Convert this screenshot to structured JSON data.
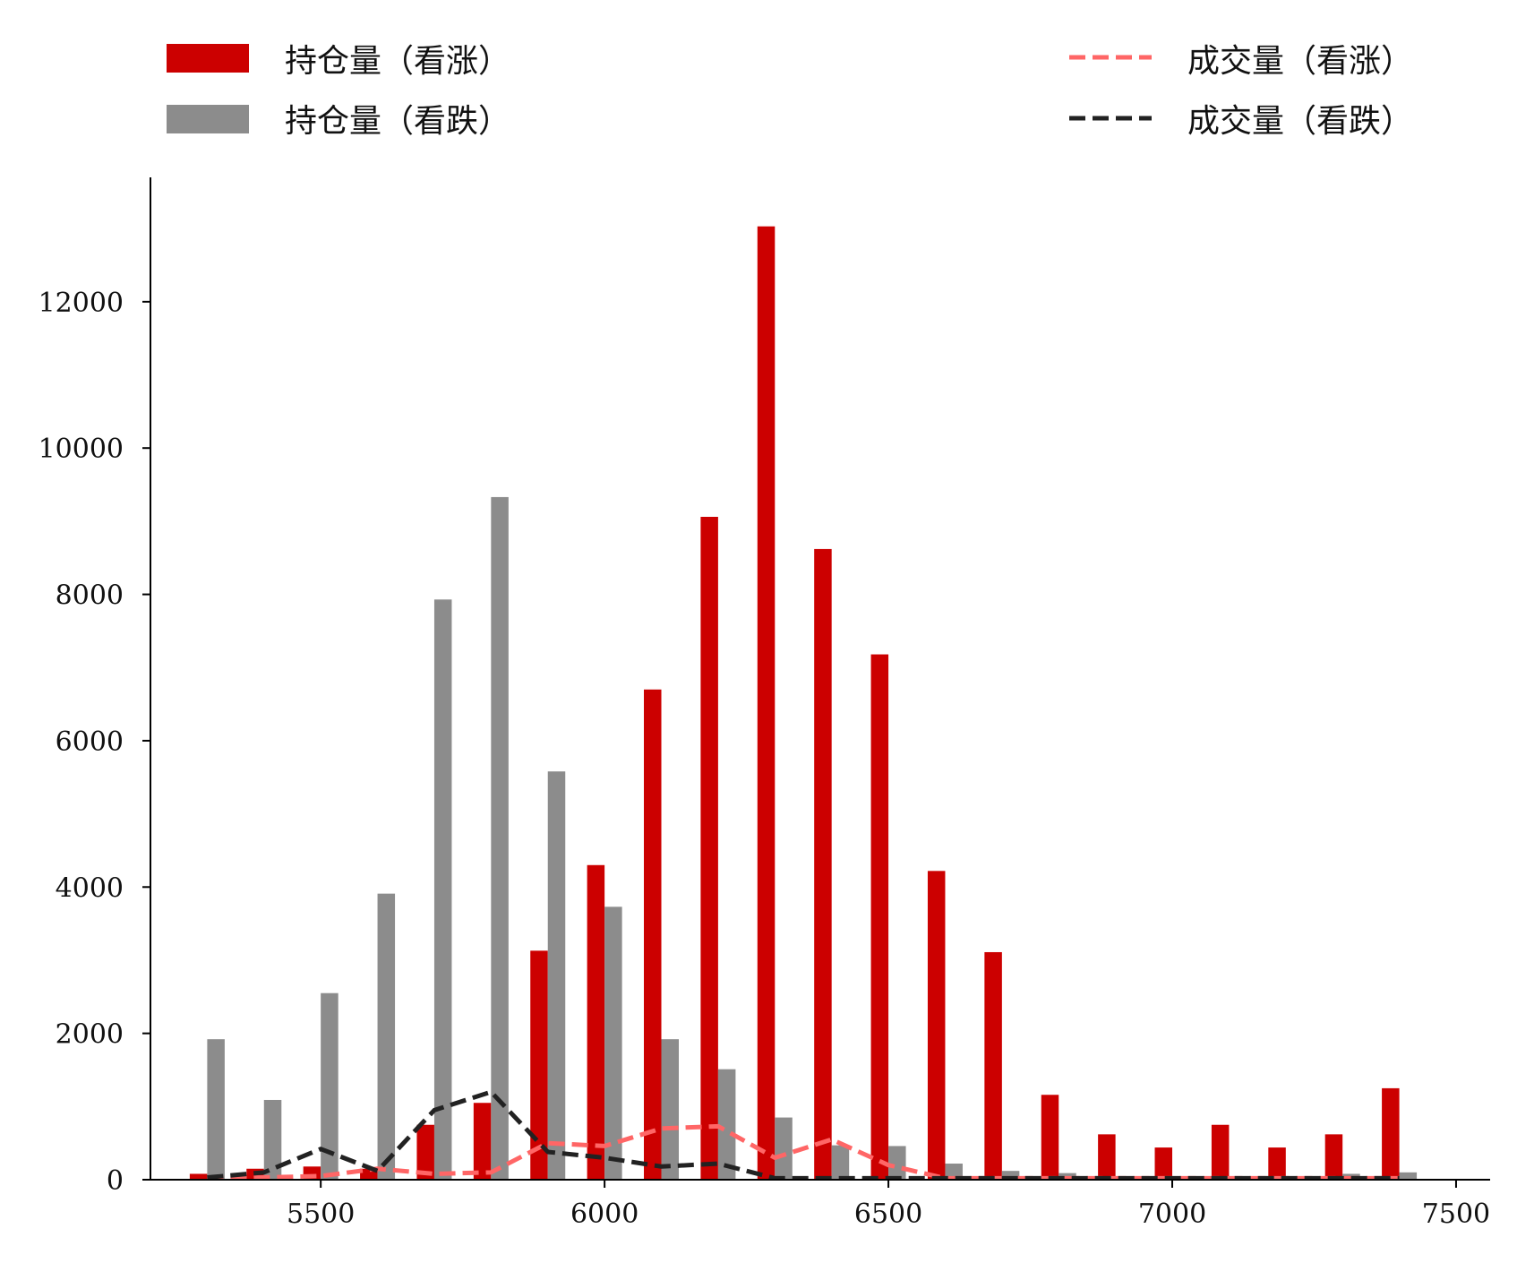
{
  "chart_data": {
    "type": "bar",
    "x_label": "",
    "y_label": "",
    "xlim": [
      5200,
      7560
    ],
    "ylim": [
      0,
      13700
    ],
    "x_ticks": [
      5500,
      6000,
      6500,
      7000,
      7500
    ],
    "y_ticks": [
      0,
      2000,
      4000,
      6000,
      8000,
      10000,
      12000
    ],
    "strikes": [
      5300,
      5400,
      5500,
      5600,
      5700,
      5800,
      5900,
      6000,
      6100,
      6200,
      6300,
      6400,
      6500,
      6600,
      6700,
      6800,
      6900,
      7000,
      7100,
      7200,
      7300,
      7400
    ],
    "legend": {
      "oi_call": "持仓量（看涨）",
      "oi_put": "持仓量（看跌）",
      "vol_call": "成交量（看涨）",
      "vol_put": "成交量（看跌）"
    },
    "series": [
      {
        "name": "持仓量（看涨）",
        "kind": "bar",
        "color": "#cc0000",
        "values": [
          80,
          150,
          180,
          150,
          750,
          1050,
          3130,
          4300,
          6700,
          9060,
          13030,
          8620,
          7180,
          4220,
          3110,
          1160,
          620,
          440,
          750,
          440,
          620,
          1250
        ]
      },
      {
        "name": "持仓量（看跌）",
        "kind": "bar",
        "color": "#8c8c8c",
        "values": [
          1920,
          1090,
          2550,
          3910,
          7930,
          9330,
          5580,
          3730,
          1920,
          1510,
          850,
          470,
          460,
          220,
          120,
          90,
          40,
          30,
          30,
          20,
          80,
          100
        ]
      },
      {
        "name": "成交量（看涨）",
        "kind": "line",
        "color": "#ff6666",
        "values": [
          20,
          30,
          50,
          150,
          80,
          100,
          500,
          460,
          700,
          730,
          300,
          550,
          200,
          20,
          20,
          20,
          20,
          20,
          20,
          20,
          20,
          20
        ]
      },
      {
        "name": "成交量（看跌）",
        "kind": "line",
        "color": "#222222",
        "values": [
          30,
          100,
          420,
          120,
          950,
          1200,
          380,
          300,
          180,
          220,
          20,
          20,
          20,
          20,
          20,
          20,
          20,
          20,
          20,
          20,
          20,
          20
        ]
      }
    ]
  }
}
